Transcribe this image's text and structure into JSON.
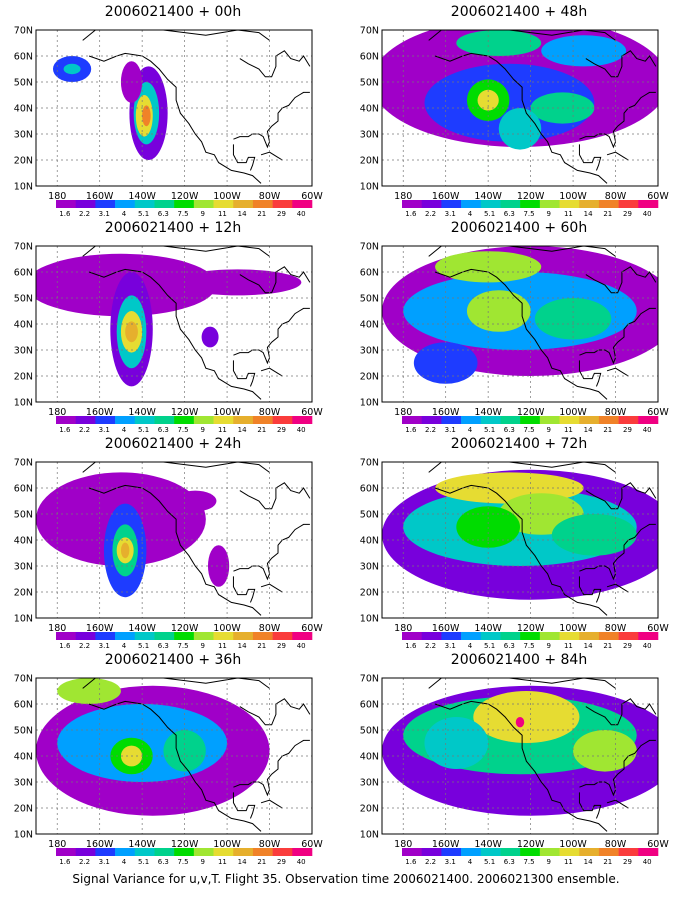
{
  "footer": "Signal Variance for u,v,T. Flight 35. Observation time 2006021400. 2006021300 ensemble.",
  "map": {
    "lat_labels": [
      "70N",
      "60N",
      "50N",
      "40N",
      "30N",
      "20N",
      "10N"
    ],
    "lon_labels": [
      "180",
      "160W",
      "140W",
      "120W",
      "100W",
      "80W",
      "60W"
    ],
    "lon_range": [
      -190,
      -60
    ],
    "lat_range": [
      10,
      70
    ]
  },
  "colorbar": {
    "labels": [
      "1.6",
      "2.2",
      "3.1",
      "4",
      "5.1",
      "6.3",
      "7.5",
      "9",
      "11",
      "14",
      "21",
      "29",
      "40"
    ],
    "colors": [
      "#a000c8",
      "#7800dc",
      "#1e3cff",
      "#00a0ff",
      "#00c8c8",
      "#00d28c",
      "#00dc00",
      "#a0e632",
      "#e6dc32",
      "#e6af2d",
      "#f08228",
      "#fa3c3c",
      "#f00082"
    ]
  },
  "panels": [
    {
      "title": "2006021400 + 00h",
      "blobs": [
        {
          "lon": -137,
          "lat": 38,
          "rx": 9,
          "ry": 18,
          "level": 1
        },
        {
          "lon": -138,
          "lat": 38,
          "rx": 6,
          "ry": 12,
          "level": 4
        },
        {
          "lon": -139,
          "lat": 37,
          "rx": 4,
          "ry": 8,
          "level": 8
        },
        {
          "lon": -138,
          "lat": 37,
          "rx": 2,
          "ry": 4,
          "level": 10
        },
        {
          "lon": -173,
          "lat": 55,
          "rx": 9,
          "ry": 5,
          "level": 2
        },
        {
          "lon": -173,
          "lat": 55,
          "rx": 4,
          "ry": 2,
          "level": 4
        },
        {
          "lon": -145,
          "lat": 50,
          "rx": 5,
          "ry": 8,
          "level": 0
        }
      ]
    },
    {
      "title": "2006021400 + 48h",
      "blobs": [
        {
          "lon": -125,
          "lat": 50,
          "rx": 70,
          "ry": 25,
          "level": 0
        },
        {
          "lon": -130,
          "lat": 42,
          "rx": 40,
          "ry": 15,
          "level": 2
        },
        {
          "lon": -140,
          "lat": 43,
          "rx": 10,
          "ry": 8,
          "level": 6
        },
        {
          "lon": -140,
          "lat": 43,
          "rx": 5,
          "ry": 4,
          "level": 8
        },
        {
          "lon": -105,
          "lat": 40,
          "rx": 15,
          "ry": 6,
          "level": 5
        },
        {
          "lon": -125,
          "lat": 32,
          "rx": 10,
          "ry": 8,
          "level": 4
        },
        {
          "lon": -135,
          "lat": 65,
          "rx": 20,
          "ry": 5,
          "level": 5
        },
        {
          "lon": -95,
          "lat": 62,
          "rx": 20,
          "ry": 6,
          "level": 3
        }
      ]
    },
    {
      "title": "2006021400 + 12h",
      "blobs": [
        {
          "lon": -150,
          "lat": 55,
          "rx": 45,
          "ry": 12,
          "level": 0
        },
        {
          "lon": -145,
          "lat": 38,
          "rx": 10,
          "ry": 22,
          "level": 1
        },
        {
          "lon": -145,
          "lat": 37,
          "rx": 7,
          "ry": 14,
          "level": 4
        },
        {
          "lon": -145,
          "lat": 37,
          "rx": 5,
          "ry": 8,
          "level": 8
        },
        {
          "lon": -145,
          "lat": 37,
          "rx": 3,
          "ry": 4,
          "level": 9
        },
        {
          "lon": -95,
          "lat": 56,
          "rx": 30,
          "ry": 5,
          "level": 0
        },
        {
          "lon": -108,
          "lat": 35,
          "rx": 4,
          "ry": 4,
          "level": 1
        }
      ]
    },
    {
      "title": "2006021400 + 60h",
      "blobs": [
        {
          "lon": -120,
          "lat": 45,
          "rx": 70,
          "ry": 25,
          "level": 0
        },
        {
          "lon": -125,
          "lat": 45,
          "rx": 55,
          "ry": 15,
          "level": 3
        },
        {
          "lon": -135,
          "lat": 45,
          "rx": 15,
          "ry": 8,
          "level": 7
        },
        {
          "lon": -140,
          "lat": 62,
          "rx": 25,
          "ry": 6,
          "level": 7
        },
        {
          "lon": -100,
          "lat": 42,
          "rx": 18,
          "ry": 8,
          "level": 5
        },
        {
          "lon": -160,
          "lat": 25,
          "rx": 15,
          "ry": 8,
          "level": 2
        }
      ]
    },
    {
      "title": "2006021400 + 24h",
      "blobs": [
        {
          "lon": -150,
          "lat": 48,
          "rx": 40,
          "ry": 18,
          "level": 0
        },
        {
          "lon": -148,
          "lat": 36,
          "rx": 10,
          "ry": 18,
          "level": 2
        },
        {
          "lon": -148,
          "lat": 36,
          "rx": 6,
          "ry": 10,
          "level": 5
        },
        {
          "lon": -148,
          "lat": 36,
          "rx": 4,
          "ry": 5,
          "level": 8
        },
        {
          "lon": -148,
          "lat": 36,
          "rx": 2,
          "ry": 3,
          "level": 9
        },
        {
          "lon": -115,
          "lat": 55,
          "rx": 10,
          "ry": 4,
          "level": 0
        },
        {
          "lon": -104,
          "lat": 30,
          "rx": 5,
          "ry": 8,
          "level": 0
        }
      ]
    },
    {
      "title": "2006021400 + 72h",
      "blobs": [
        {
          "lon": -120,
          "lat": 42,
          "rx": 70,
          "ry": 25,
          "level": 1
        },
        {
          "lon": -125,
          "lat": 45,
          "rx": 55,
          "ry": 15,
          "level": 4
        },
        {
          "lon": -130,
          "lat": 60,
          "rx": 35,
          "ry": 6,
          "level": 8
        },
        {
          "lon": -115,
          "lat": 50,
          "rx": 20,
          "ry": 8,
          "level": 7
        },
        {
          "lon": -140,
          "lat": 45,
          "rx": 15,
          "ry": 8,
          "level": 6
        },
        {
          "lon": -90,
          "lat": 42,
          "rx": 20,
          "ry": 8,
          "level": 5
        }
      ]
    },
    {
      "title": "2006021400 + 36h",
      "blobs": [
        {
          "lon": -135,
          "lat": 42,
          "rx": 55,
          "ry": 25,
          "level": 0
        },
        {
          "lon": -140,
          "lat": 45,
          "rx": 40,
          "ry": 15,
          "level": 3
        },
        {
          "lon": -145,
          "lat": 40,
          "rx": 10,
          "ry": 7,
          "level": 6
        },
        {
          "lon": -145,
          "lat": 40,
          "rx": 5,
          "ry": 4,
          "level": 8
        },
        {
          "lon": -165,
          "lat": 65,
          "rx": 15,
          "ry": 5,
          "level": 7
        },
        {
          "lon": -120,
          "lat": 42,
          "rx": 10,
          "ry": 8,
          "level": 5
        }
      ]
    },
    {
      "title": "2006021400 + 84h",
      "blobs": [
        {
          "lon": -120,
          "lat": 42,
          "rx": 70,
          "ry": 25,
          "level": 1
        },
        {
          "lon": -125,
          "lat": 48,
          "rx": 55,
          "ry": 15,
          "level": 5
        },
        {
          "lon": -122,
          "lat": 55,
          "rx": 25,
          "ry": 10,
          "level": 8
        },
        {
          "lon": -125,
          "lat": 53,
          "rx": 2,
          "ry": 2,
          "level": 12
        },
        {
          "lon": -85,
          "lat": 42,
          "rx": 15,
          "ry": 8,
          "level": 7
        },
        {
          "lon": -155,
          "lat": 45,
          "rx": 15,
          "ry": 10,
          "level": 4
        }
      ]
    }
  ]
}
